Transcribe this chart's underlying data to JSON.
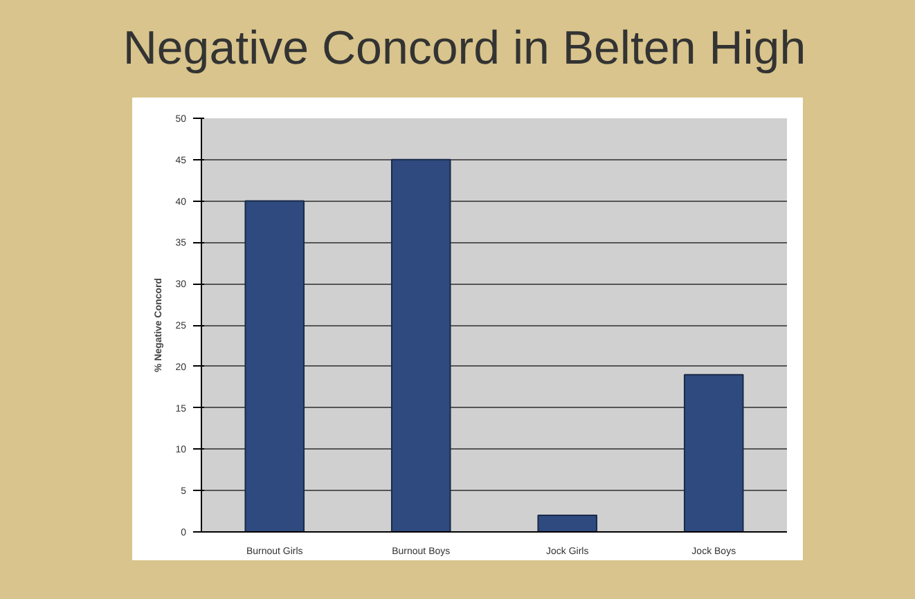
{
  "chart_data": {
    "type": "bar",
    "title": "Negative Concord in Belten High",
    "ylabel": "% Negative Concord",
    "categories": [
      "Burnout Girls",
      "Burnout Boys",
      "Jock Girls",
      "Jock Boys"
    ],
    "values": [
      40,
      45,
      2,
      19
    ],
    "color": "#2e4a7e",
    "ylim": [
      0,
      50
    ],
    "yticks": [
      0,
      5,
      10,
      15,
      20,
      25,
      30,
      35,
      40,
      45,
      50
    ],
    "grid": "y"
  }
}
